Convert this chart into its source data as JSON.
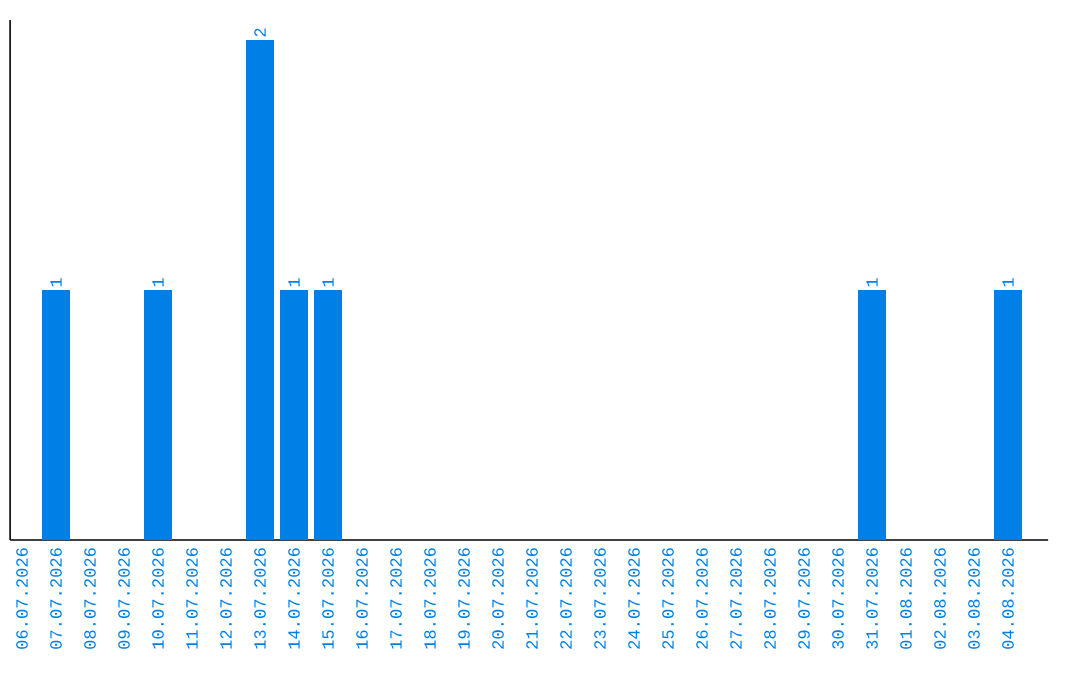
{
  "chart_data": {
    "type": "bar",
    "categories": [
      "06.07.2026",
      "07.07.2026",
      "08.07.2026",
      "09.07.2026",
      "10.07.2026",
      "11.07.2026",
      "12.07.2026",
      "13.07.2026",
      "14.07.2026",
      "15.07.2026",
      "16.07.2026",
      "17.07.2026",
      "18.07.2026",
      "19.07.2026",
      "20.07.2026",
      "21.07.2026",
      "22.07.2026",
      "23.07.2026",
      "24.07.2026",
      "25.07.2026",
      "26.07.2026",
      "27.07.2026",
      "28.07.2026",
      "29.07.2026",
      "30.07.2026",
      "31.07.2026",
      "01.08.2026",
      "02.08.2026",
      "03.08.2026",
      "04.08.2026"
    ],
    "values": [
      0,
      1,
      0,
      0,
      1,
      0,
      0,
      2,
      1,
      1,
      0,
      0,
      0,
      0,
      0,
      0,
      0,
      0,
      0,
      0,
      0,
      0,
      0,
      0,
      0,
      1,
      0,
      0,
      0,
      1
    ],
    "value_labels": [
      null,
      "1",
      null,
      null,
      "1",
      null,
      null,
      "2",
      "1",
      "1",
      null,
      null,
      null,
      null,
      null,
      null,
      null,
      null,
      null,
      null,
      null,
      null,
      null,
      null,
      null,
      "1",
      null,
      null,
      null,
      "1"
    ],
    "color": "#0080e6"
  }
}
